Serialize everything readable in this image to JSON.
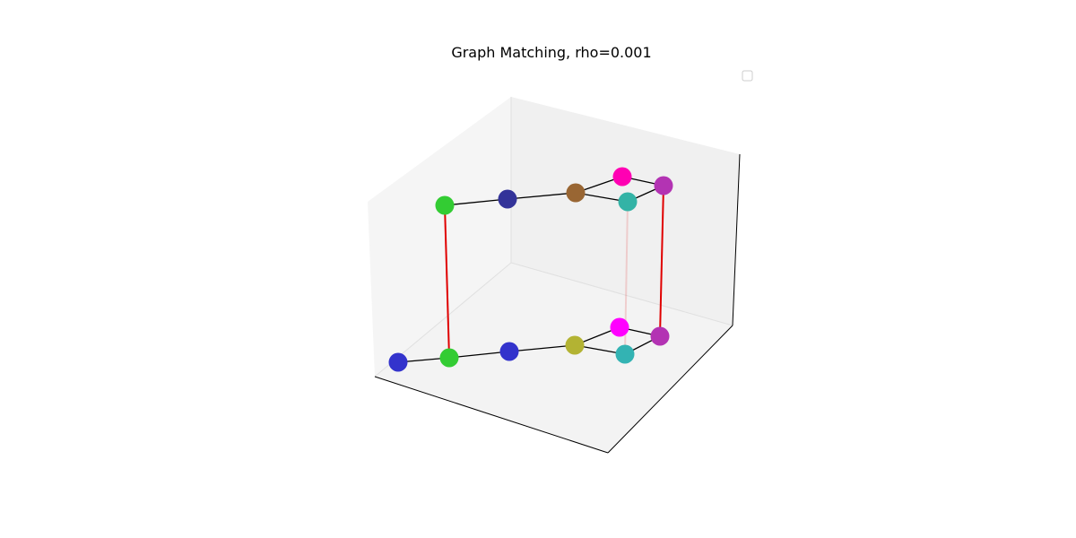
{
  "chart_data": {
    "type": "scatter",
    "title": "Graph Matching, rho=0.001",
    "legend": {
      "placement": "top-right",
      "entries": []
    },
    "grid": false,
    "axes_visible": false,
    "graphs": [
      {
        "name": "",
        "nodes": [
          {
            "id": "a1",
            "color": "#3333cc"
          },
          {
            "id": "b1",
            "color": "#33cc33"
          },
          {
            "id": "c1",
            "color": "#3333cc"
          },
          {
            "id": "d1",
            "color": "#b3b333"
          },
          {
            "id": "e1",
            "color": "#ff00ff"
          },
          {
            "id": "f1",
            "color": "#33b3b3"
          },
          {
            "id": "g1",
            "color": "#b333b3"
          }
        ],
        "edges": [
          [
            "a1",
            "b1"
          ],
          [
            "b1",
            "c1"
          ],
          [
            "c1",
            "d1"
          ],
          [
            "d1",
            "e1"
          ],
          [
            "d1",
            "f1"
          ],
          [
            "e1",
            "g1"
          ],
          [
            "f1",
            "g1"
          ]
        ]
      },
      {
        "name": "",
        "nodes": [
          {
            "id": "b2",
            "color": "#33cc33"
          },
          {
            "id": "c2",
            "color": "#333399"
          },
          {
            "id": "d2",
            "color": "#996633"
          },
          {
            "id": "e2",
            "color": "#ff00b3"
          },
          {
            "id": "f2",
            "color": "#33b3a6"
          },
          {
            "id": "g2",
            "color": "#b333b3"
          }
        ],
        "edges": [
          [
            "b2",
            "c2"
          ],
          [
            "c2",
            "d2"
          ],
          [
            "d2",
            "e2"
          ],
          [
            "d2",
            "f2"
          ],
          [
            "e2",
            "g2"
          ],
          [
            "f2",
            "g2"
          ]
        ]
      }
    ],
    "matches": [
      {
        "from": "b1",
        "to": "b2",
        "strength": 1.0,
        "color": "#e00000"
      },
      {
        "from": "g1",
        "to": "g2",
        "strength": 1.0,
        "color": "#e00000"
      },
      {
        "from": "f1",
        "to": "f2",
        "strength": 0.15,
        "color": "#e00000"
      }
    ]
  }
}
